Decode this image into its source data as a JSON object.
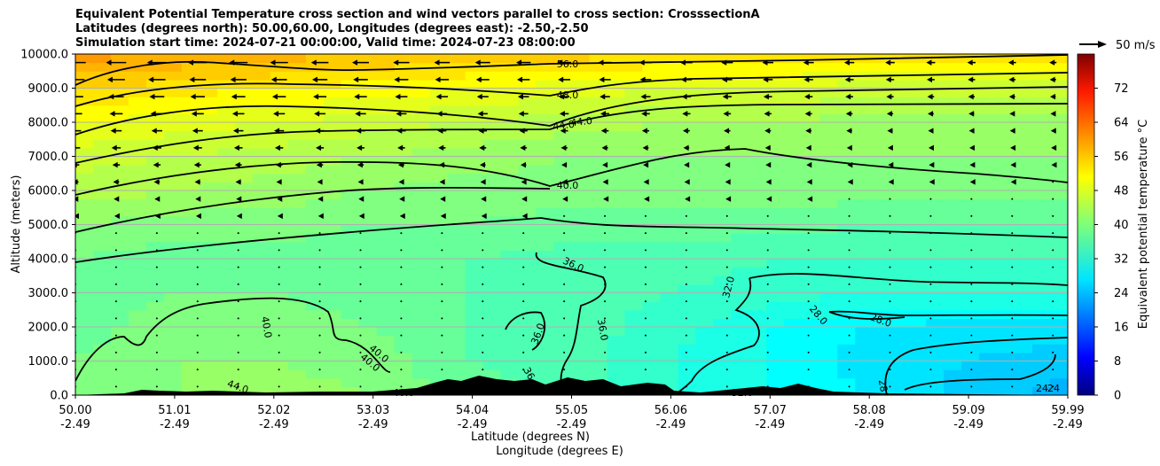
{
  "chart_data": {
    "type": "heatmap",
    "title_lines": [
      "Equivalent Potential Temperature cross section and wind vectors parallel to cross section: CrosssectionA",
      "Latitudes (degrees north): 50.00,60.00, Longitudes (degrees east): -2.50,-2.50",
      "Simulation start time: 2024-07-21 00:00:00, Valid time: 2024-07-23 08:00:00"
    ],
    "xlabel": "Latitude (degrees N)",
    "xlabel2": "Longitude (degrees E)",
    "ylabel": "Altitude (meters)",
    "ylim": [
      0,
      10000
    ],
    "yticks": [
      "0.0",
      "1000.0",
      "2000.0",
      "3000.0",
      "4000.0",
      "5000.0",
      "6000.0",
      "7000.0",
      "8000.0",
      "9000.0",
      "10000.0"
    ],
    "xticks_lat": [
      "50.00",
      "51.01",
      "52.02",
      "53.03",
      "54.04",
      "55.05",
      "56.06",
      "57.07",
      "58.08",
      "59.09",
      "59.99"
    ],
    "xticks_lon": [
      "-2.49",
      "-2.49",
      "-2.49",
      "-2.49",
      "-2.49",
      "-2.49",
      "-2.49",
      "-2.49",
      "-2.49",
      "-2.49",
      "-2.49"
    ],
    "grid": "horizontal",
    "colorbar": {
      "label": "Equivalent potential temperature $^\\circ$C",
      "range": [
        0,
        80
      ],
      "ticks": [
        "0",
        "8",
        "16",
        "24",
        "32",
        "40",
        "48",
        "56",
        "64",
        "72"
      ]
    },
    "wind_key_label": "50 m/s",
    "contour_labels": [
      "56.0",
      "48.0",
      "44.0",
      "44.0",
      "40.0",
      "36.0",
      "32.0",
      "28.0",
      "28.0",
      "40.0",
      "40.0",
      "40.0",
      "40.0",
      "44.0",
      "36.0",
      "36.0",
      "36.0",
      "32.0",
      "28",
      "24",
      "24"
    ],
    "theta_e_fields": [
      {
        "altitude": 10000,
        "values": [
          58,
          57,
          56,
          55,
          54,
          54,
          53,
          53,
          52,
          52,
          52
        ]
      },
      {
        "altitude": 9000,
        "values": [
          53,
          52,
          51,
          50,
          49,
          48,
          47,
          47,
          46,
          46,
          46
        ]
      },
      {
        "altitude": 8000,
        "values": [
          49,
          48,
          47,
          46,
          45,
          44,
          43,
          43,
          42,
          42,
          42
        ]
      },
      {
        "altitude": 7000,
        "values": [
          46,
          45,
          44,
          43,
          42,
          41,
          41,
          41,
          41,
          41,
          41
        ]
      },
      {
        "altitude": 6000,
        "values": [
          44,
          43,
          42,
          41,
          40,
          40,
          40,
          40,
          40,
          40,
          40
        ]
      },
      {
        "altitude": 5000,
        "values": [
          41,
          40,
          40,
          39,
          39,
          38,
          38,
          38,
          37,
          37,
          37
        ]
      },
      {
        "altitude": 4000,
        "values": [
          39,
          38,
          38,
          37,
          37,
          36,
          36,
          35,
          35,
          35,
          35
        ]
      },
      {
        "altitude": 3000,
        "values": [
          38,
          39,
          39,
          38,
          37,
          36,
          35,
          34,
          33,
          33,
          33
        ]
      },
      {
        "altitude": 2000,
        "values": [
          38,
          40,
          40,
          39,
          37,
          36,
          34,
          31,
          29,
          28,
          28
        ]
      },
      {
        "altitude": 1000,
        "values": [
          39,
          41,
          41,
          40,
          37,
          36,
          33,
          31,
          28,
          27,
          26
        ]
      },
      {
        "altitude": 0,
        "values": [
          39,
          41,
          42,
          41,
          38,
          36,
          33,
          31,
          29,
          26,
          24
        ]
      }
    ]
  }
}
